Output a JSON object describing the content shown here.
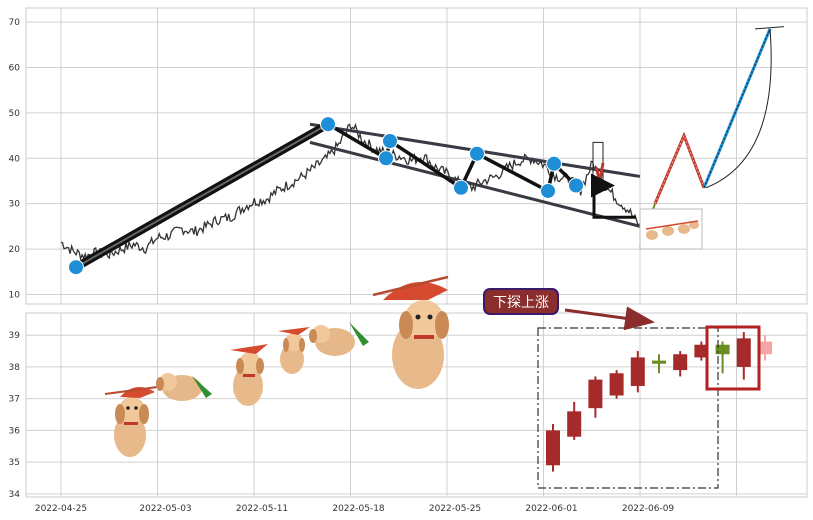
{
  "colors": {
    "panel_bg": "#eaeaf2",
    "plot_bg": "#ffffff",
    "grid": "#d0d0d0",
    "price_line": "#333333",
    "trend_line": "#111111",
    "channel_line": "#3a3a44",
    "pivot_dot": "#1e8fd6",
    "forecast_blue": "#1a8fd6",
    "forecast_red": "#c0392b",
    "candle_red": "#a52a2a",
    "candle_green": "#6b8e23",
    "candle_pink": "#f4a6a6",
    "highlight_box": "#b22222",
    "annotation_bg": "#8b2d2d",
    "annotation_border": "#3a1a6a",
    "arrow": "#8b2d2d"
  },
  "annotation": {
    "label": "下探上涨"
  },
  "decor": {
    "dogs": "cartoon-dog-helicopter-stickers"
  },
  "chart_data": [
    {
      "type": "line",
      "panel": "top",
      "y_ticks": [
        "10",
        "20",
        "30",
        "40",
        "50",
        "60",
        "70"
      ],
      "ylim": [
        9,
        72
      ],
      "grid": true,
      "series": [
        {
          "values": [
            [
              0,
              21.5
            ],
            [
              1,
              19.5
            ],
            [
              2,
              18.5
            ],
            [
              3,
              19.2
            ],
            [
              4,
              18.8
            ],
            [
              5,
              20.0
            ],
            [
              6,
              21.0
            ],
            [
              7,
              20.2
            ],
            [
              8,
              22.5
            ],
            [
              9,
              23.0
            ],
            [
              10,
              24.5
            ],
            [
              11,
              23.8
            ],
            [
              12,
              25.0
            ],
            [
              13,
              26.5
            ],
            [
              14,
              27.0
            ],
            [
              15,
              29.0
            ],
            [
              16,
              30.5
            ],
            [
              17,
              31.0
            ],
            [
              18,
              33.0
            ],
            [
              19,
              34.5
            ],
            [
              20,
              36.0
            ],
            [
              21,
              38.0
            ],
            [
              22,
              40.0
            ],
            [
              23,
              43.0
            ],
            [
              24,
              47.5
            ],
            [
              25,
              44.0
            ],
            [
              26,
              42.0
            ],
            [
              27,
              41.0
            ],
            [
              28,
              40.5
            ],
            [
              29,
              39.5
            ],
            [
              30,
              40.5
            ],
            [
              31,
              38.0
            ],
            [
              32,
              36.5
            ],
            [
              33,
              34.5
            ],
            [
              34,
              33.5
            ],
            [
              35,
              35.0
            ],
            [
              36,
              36.0
            ],
            [
              37,
              38.0
            ],
            [
              38,
              39.5
            ],
            [
              39,
              40.0
            ],
            [
              40,
              38.5
            ],
            [
              41,
              36.0
            ],
            [
              42,
              35.5
            ],
            [
              43,
              33.0
            ],
            [
              44,
              39.0
            ],
            [
              45,
              34.0
            ],
            [
              46,
              31.0
            ],
            [
              47,
              28.5
            ],
            [
              48,
              24.5
            ]
          ]
        }
      ],
      "pivots": [
        [
          1.5,
          16.0
        ],
        [
          24.5,
          47.5
        ],
        [
          30,
          40.0
        ],
        [
          30.5,
          43.8
        ],
        [
          38.5,
          33.5
        ],
        [
          40,
          41.0
        ],
        [
          45,
          32.8
        ],
        [
          46,
          38.8
        ],
        [
          47,
          34.0
        ]
      ]
    },
    {
      "type": "bar",
      "panel": "bottom",
      "x_ticks": [
        "2022-04-25",
        "2022-05-03",
        "2022-05-11",
        "2022-05-18",
        "2022-05-25",
        "2022-06-01",
        "2022-06-09"
      ],
      "y_ticks": [
        "34",
        "35",
        "36",
        "37",
        "38",
        "39"
      ],
      "ylim": [
        33.9,
        39.7
      ],
      "grid": true,
      "candles": [
        {
          "open": 34.9,
          "close": 36.0,
          "low": 34.7,
          "high": 36.2,
          "color": "red"
        },
        {
          "open": 35.8,
          "close": 36.6,
          "low": 35.7,
          "high": 36.9,
          "color": "red"
        },
        {
          "open": 36.7,
          "close": 37.6,
          "low": 36.4,
          "high": 37.7,
          "color": "red"
        },
        {
          "open": 37.1,
          "close": 37.8,
          "low": 37.0,
          "high": 37.9,
          "color": "red"
        },
        {
          "open": 37.4,
          "close": 38.3,
          "low": 37.2,
          "high": 38.5,
          "color": "red"
        },
        {
          "open": 38.2,
          "close": 38.1,
          "low": 37.8,
          "high": 38.4,
          "color": "green"
        },
        {
          "open": 37.9,
          "close": 38.4,
          "low": 37.7,
          "high": 38.5,
          "color": "red"
        },
        {
          "open": 38.3,
          "close": 38.7,
          "low": 38.2,
          "high": 38.8,
          "color": "red"
        },
        {
          "open": 38.7,
          "close": 38.4,
          "low": 37.8,
          "high": 38.8,
          "color": "green"
        },
        {
          "open": 38.0,
          "close": 38.9,
          "low": 37.6,
          "high": 39.1,
          "color": "red"
        },
        {
          "open": 38.4,
          "close": 38.8,
          "low": 38.2,
          "high": 39.0,
          "color": "pink"
        }
      ]
    }
  ]
}
